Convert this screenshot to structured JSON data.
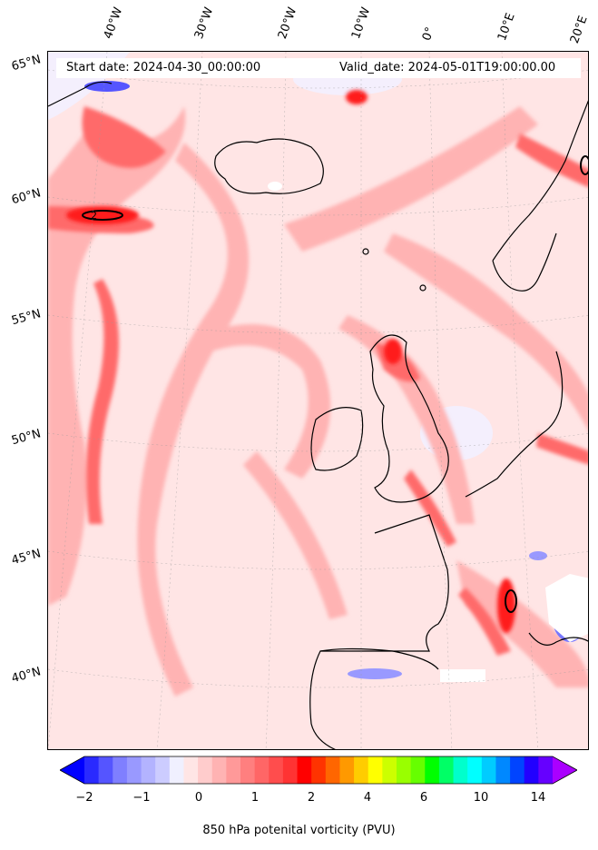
{
  "header": {
    "start_date": "Start date: 2024-04-30_00:00:00",
    "valid_date": "Valid_date: 2024-05-01T19:00:00.00"
  },
  "lon_labels": [
    "40°W",
    "30°W",
    "20°W",
    "10°W",
    "0°",
    "10°E",
    "20°E"
  ],
  "lat_labels": [
    "65°N",
    "60°N",
    "55°N",
    "50°N",
    "45°N",
    "40°N"
  ],
  "colorbar": {
    "title": "850 hPa potenital vorticity (PVU)",
    "tick_labels": [
      "−2",
      "−1",
      "0",
      "1",
      "2",
      "4",
      "6",
      "10",
      "14"
    ],
    "colors": [
      "#0000ff",
      "#2a2aff",
      "#5555ff",
      "#7f7fff",
      "#9999ff",
      "#b3b3ff",
      "#ccccff",
      "#f0f0ff",
      "#ffe5e5",
      "#ffcccc",
      "#ffb3b3",
      "#ff9999",
      "#ff7f7f",
      "#ff6666",
      "#ff4d4d",
      "#ff3333",
      "#ff0000",
      "#ff3300",
      "#ff6600",
      "#ff9900",
      "#ffcc00",
      "#ffff00",
      "#ccff00",
      "#99ff00",
      "#66ff00",
      "#00ff00",
      "#00ff66",
      "#00ffcc",
      "#00ffff",
      "#00ccff",
      "#0088ff",
      "#0044ff",
      "#2200ff",
      "#6600ff",
      "#aa00ff"
    ]
  },
  "contour_label": "2"
}
